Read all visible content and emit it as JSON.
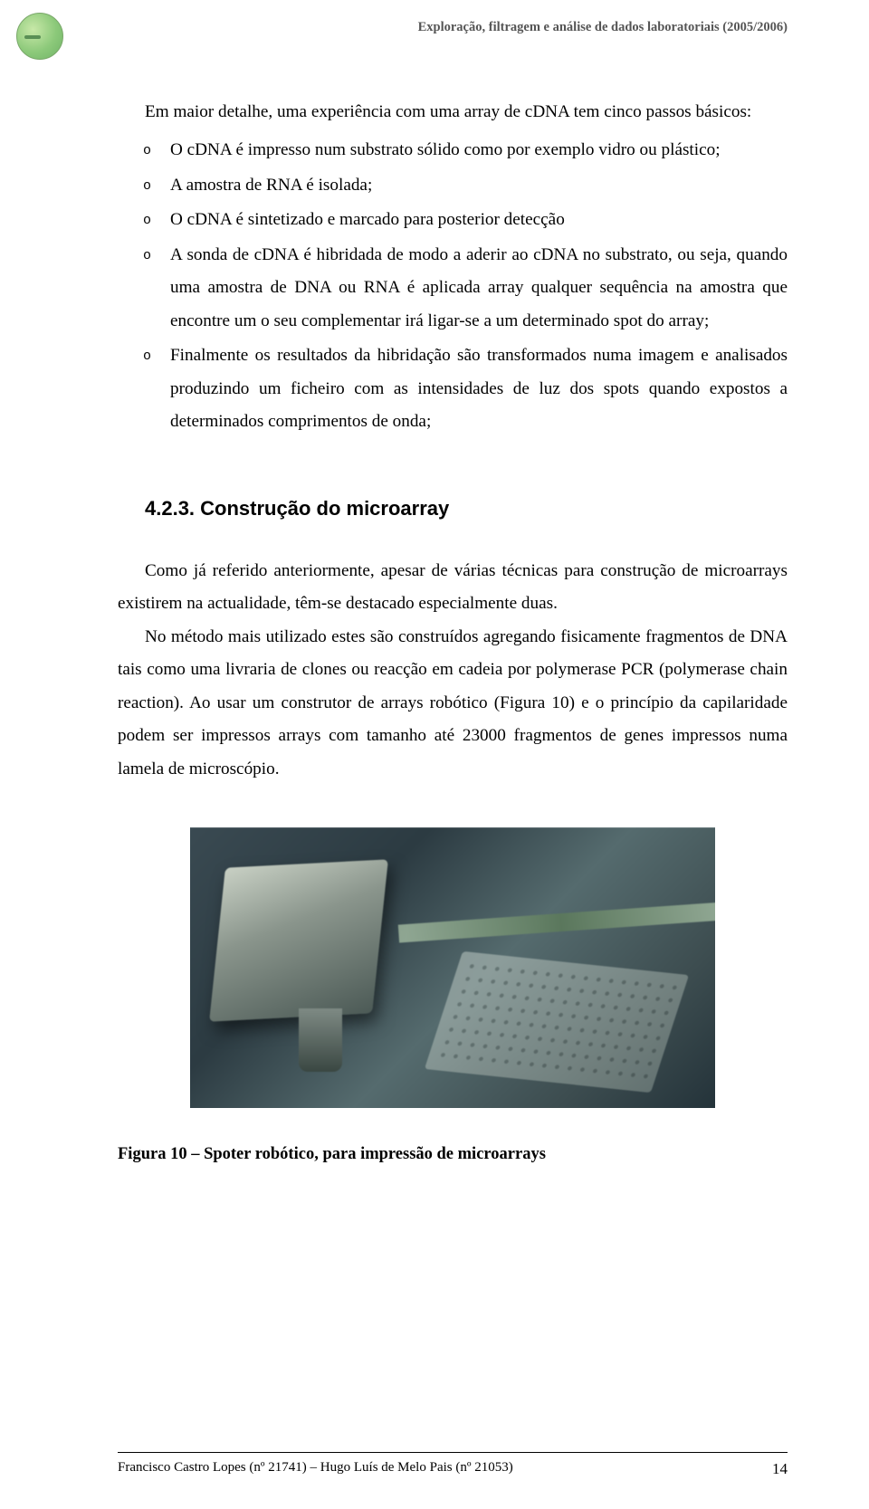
{
  "header": {
    "text": "Exploração, filtragem e análise de dados laboratoriais (2005/2006)"
  },
  "intro": "Em maior detalhe, uma experiência com uma array de cDNA tem cinco passos básicos:",
  "bullets": [
    "O cDNA é impresso num substrato sólido como por exemplo vidro ou plástico;",
    "A amostra de RNA é isolada;",
    "O cDNA é sintetizado e marcado para posterior detecção",
    "A sonda de cDNA é hibridada de modo a aderir ao cDNA no substrato, ou seja, quando uma amostra de DNA ou RNA é aplicada array qualquer sequência na amostra que encontre um o seu complementar irá ligar-se a um determinado spot do array;",
    "Finalmente os resultados da hibridação são transformados numa imagem e analisados produzindo um ficheiro com as intensidades de luz dos spots quando expostos a determinados comprimentos de onda;"
  ],
  "section": {
    "number": "4.2.3.",
    "title": "Construção do microarray"
  },
  "paragraphs": [
    "Como já referido anteriormente, apesar de várias técnicas para construção de microarrays existirem na actualidade, têm-se destacado especialmente duas.",
    "No método mais utilizado estes são construídos agregando fisicamente fragmentos de DNA tais como uma livraria de clones ou reacção em cadeia por polymerase PCR (polymerase chain reaction). Ao usar um construtor de arrays robótico (Figura 10) e o princípio da capilaridade podem ser impressos arrays com tamanho até 23000 fragmentos de genes impressos numa lamela de microscópio."
  ],
  "figure": {
    "caption": "Figura 10 – Spoter robótico, para impressão de microarrays",
    "alt": "robotic-microarray-spotter"
  },
  "footer": {
    "authors": "Francisco Castro Lopes (nº 21741) – Hugo Luís de Melo Pais (nº 21053)",
    "page": "14"
  }
}
